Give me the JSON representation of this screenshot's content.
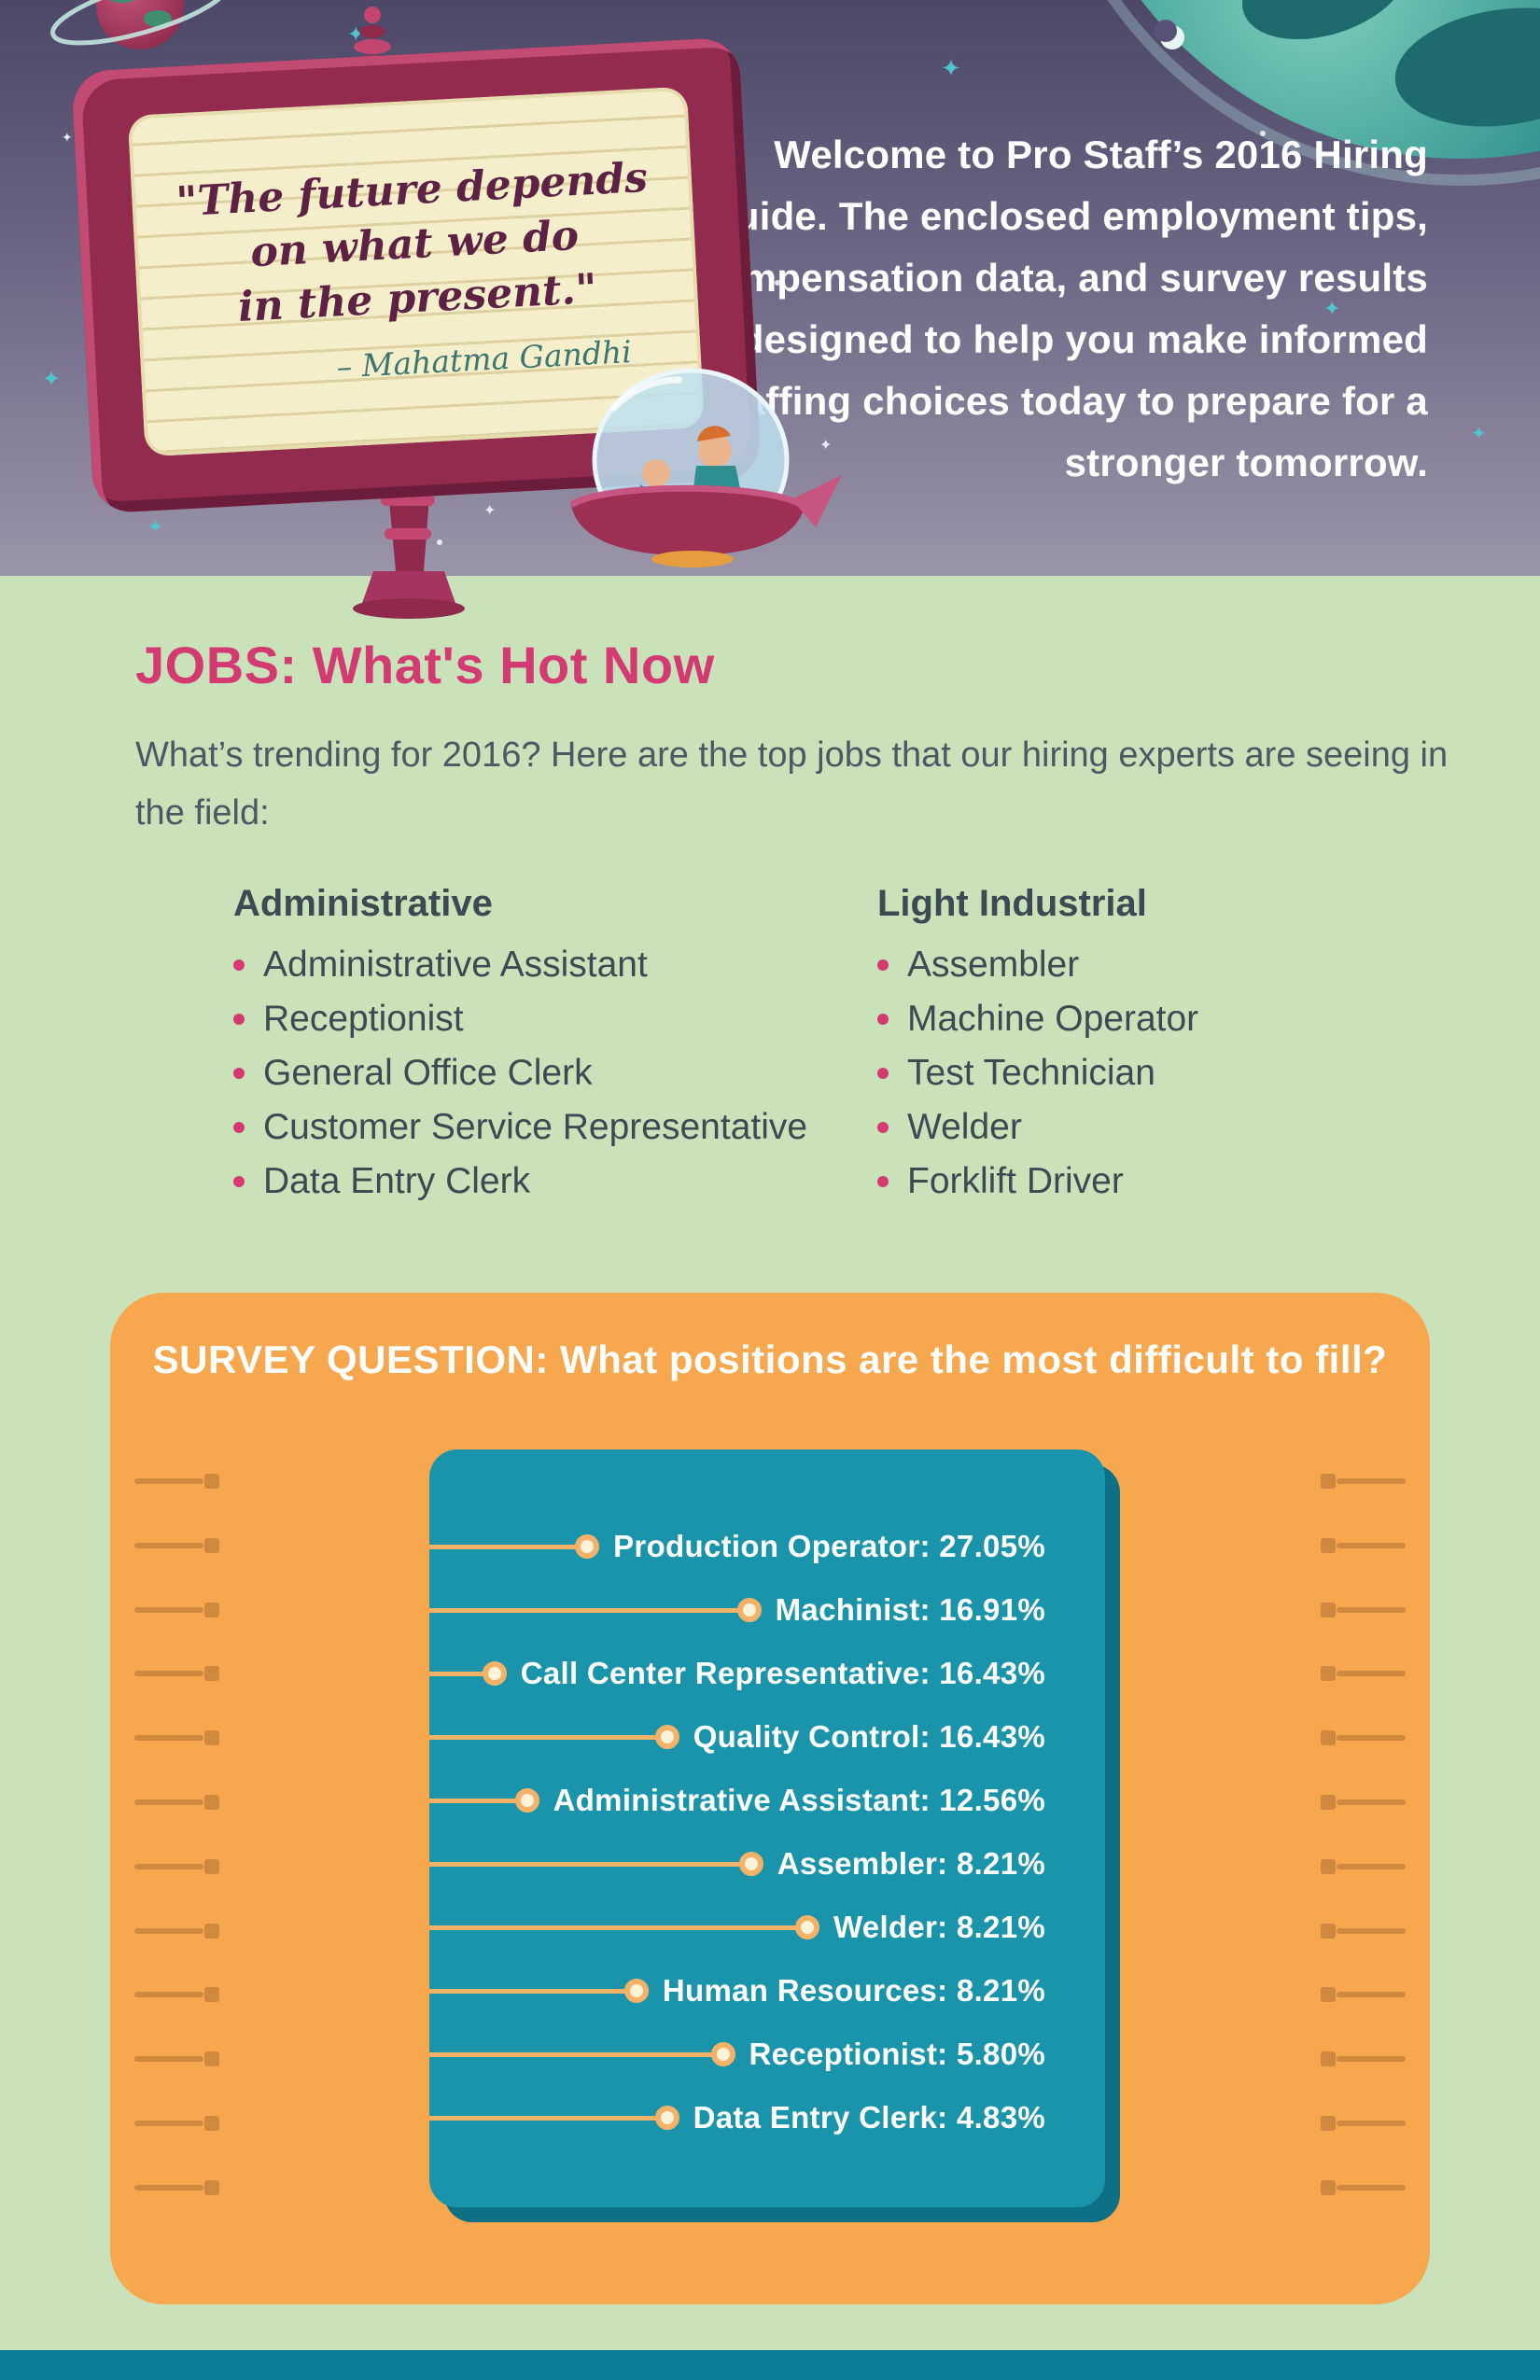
{
  "header": {
    "quote": {
      "lines": [
        "\"The future depends",
        "on what we do",
        "in the present.\""
      ],
      "attribution": "– Mahatma Gandhi"
    },
    "welcome_lines": [
      "Welcome to Pro Staff’s 2016 Hiring",
      "Guide. The enclosed employment tips,",
      "compensation data, and survey results",
      "are designed to help you make informed",
      "staffing choices today to prepare for a",
      "stronger tomorrow."
    ]
  },
  "jobs": {
    "title": "JOBS: What's Hot Now",
    "intro": "What’s trending for 2016? Here are the top jobs that our hiring experts are seeing in the field:",
    "columns": [
      {
        "header": "Administrative",
        "items": [
          "Administrative Assistant",
          "Receptionist",
          "General Office Clerk",
          "Customer Service Representative",
          "Data Entry Clerk"
        ]
      },
      {
        "header": "Light Industrial",
        "items": [
          "Assembler",
          "Machine Operator",
          "Test Technician",
          "Welder",
          "Forklift Driver"
        ]
      }
    ]
  },
  "survey": {
    "title": "SURVEY QUESTION: What positions are the most difficult to fill?"
  },
  "chart_data": {
    "type": "bar",
    "orientation": "horizontal-lollipop",
    "title": "SURVEY QUESTION: What positions are the most difficult to fill?",
    "categories": [
      "Production Operator",
      "Machinist",
      "Call Center Representative",
      "Quality Control",
      "Administrative Assistant",
      "Assembler",
      "Welder",
      "Human Resources",
      "Receptionist",
      "Data Entry Clerk"
    ],
    "values": [
      27.05,
      16.91,
      16.43,
      16.43,
      12.56,
      8.21,
      8.21,
      8.21,
      5.8,
      4.83
    ],
    "unit": "%",
    "value_label_format": "{category}: {value}%",
    "legend": false,
    "grid": false
  },
  "colors": {
    "accent_pink": "#d23a71",
    "frame_maroon": "#932b4f",
    "screen_cream": "#f5eecb",
    "background_green": "#c9e2ba",
    "card_orange": "#f7a84e",
    "panel_teal": "#1a94ab",
    "lollipop_orange": "#f4b269",
    "footer_teal": "#0b7e96",
    "body_text": "#3e4a51"
  }
}
